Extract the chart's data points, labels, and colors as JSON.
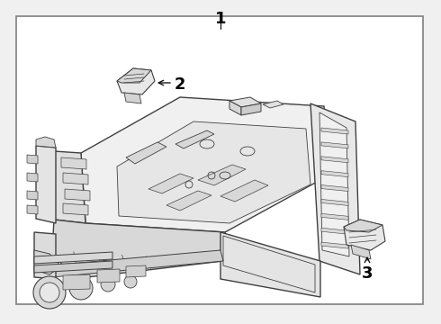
{
  "bg_color": "#f0f0f0",
  "box_fill": "#ffffff",
  "line_color": "#404040",
  "part_fill": "#e8e8e8",
  "part_fill2": "#d8d8d8",
  "label_1": "1",
  "label_2": "2",
  "label_3": "3",
  "font_size": 13,
  "lw_main": 1.0,
  "lw_thin": 0.6,
  "lw_border": 1.3
}
